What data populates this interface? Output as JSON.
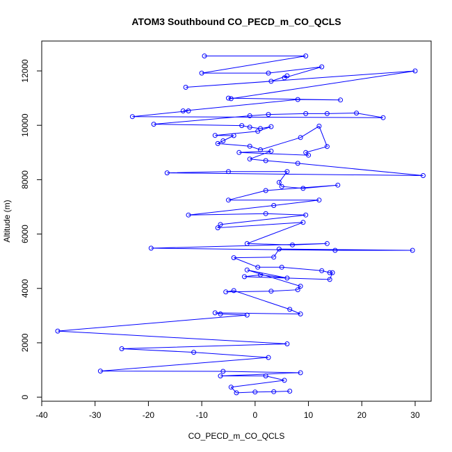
{
  "chart_data": {
    "type": "line",
    "title": "ATOM3 Southbound CO_PECD_m_CO_QCLS",
    "xlabel": "CO_PECD_m_CO_QCLS",
    "ylabel": "Altitude (m)",
    "xlim": [
      -40,
      33
    ],
    "ylim": [
      -150,
      13100
    ],
    "xticks": [
      -40,
      -30,
      -20,
      -10,
      0,
      10,
      20,
      30
    ],
    "yticks": [
      0,
      2000,
      4000,
      6000,
      8000,
      10000,
      12000
    ],
    "series_color": "#0000ff",
    "markers": "open-circle",
    "grid": false,
    "legend": "none",
    "points": [
      [
        -9.5,
        12550
      ],
      [
        9.5,
        12550
      ],
      [
        -10,
        11920
      ],
      [
        2.5,
        11920
      ],
      [
        12.5,
        12150
      ],
      [
        5.5,
        11750
      ],
      [
        6,
        11820
      ],
      [
        3,
        11620
      ],
      [
        -13,
        11400
      ],
      [
        30,
        12000
      ],
      [
        -4.5,
        10980
      ],
      [
        -5,
        11000
      ],
      [
        16,
        10930
      ],
      [
        8,
        10950
      ],
      [
        -13.5,
        10530
      ],
      [
        -12.5,
        10530
      ],
      [
        -23,
        10320
      ],
      [
        24,
        10280
      ],
      [
        19,
        10450
      ],
      [
        13.5,
        10430
      ],
      [
        9.5,
        10430
      ],
      [
        2.5,
        10400
      ],
      [
        -1,
        10350
      ],
      [
        -19,
        10040
      ],
      [
        -2.5,
        9990
      ],
      [
        -1,
        9930
      ],
      [
        1,
        9880
      ],
      [
        3,
        9950
      ],
      [
        0.5,
        9780
      ],
      [
        -7.5,
        9630
      ],
      [
        -4,
        9620
      ],
      [
        -6,
        9430
      ],
      [
        -7,
        9330
      ],
      [
        -1,
        9230
      ],
      [
        1,
        9100
      ],
      [
        8.5,
        9550
      ],
      [
        12,
        9970
      ],
      [
        13.5,
        9220
      ],
      [
        9.5,
        9000
      ],
      [
        10,
        8900
      ],
      [
        -3,
        9000
      ],
      [
        3,
        9050
      ],
      [
        -1,
        8760
      ],
      [
        2,
        8700
      ],
      [
        8,
        8600
      ],
      [
        31.5,
        8150
      ],
      [
        -16.5,
        8250
      ],
      [
        -5,
        8300
      ],
      [
        6,
        8300
      ],
      [
        4.5,
        7900
      ],
      [
        5,
        7750
      ],
      [
        9,
        7680
      ],
      [
        15.5,
        7800
      ],
      [
        2,
        7600
      ],
      [
        -5,
        7250
      ],
      [
        12,
        7250
      ],
      [
        3.5,
        7050
      ],
      [
        -12.5,
        6700
      ],
      [
        2,
        6750
      ],
      [
        9.5,
        6700
      ],
      [
        -6.5,
        6350
      ],
      [
        -7,
        6230
      ],
      [
        9,
        6430
      ],
      [
        -1.5,
        5650
      ],
      [
        7,
        5600
      ],
      [
        13.5,
        5650
      ],
      [
        -19.5,
        5480
      ],
      [
        15,
        5400
      ],
      [
        29.5,
        5400
      ],
      [
        4.5,
        5450
      ],
      [
        3.5,
        5150
      ],
      [
        -4,
        5130
      ],
      [
        0.5,
        4780
      ],
      [
        5,
        4780
      ],
      [
        12.5,
        4650
      ],
      [
        14,
        4580
      ],
      [
        14.5,
        4580
      ],
      [
        14,
        4330
      ],
      [
        -2,
        4430
      ],
      [
        1,
        4500
      ],
      [
        6,
        4380
      ],
      [
        -1.5,
        4680
      ],
      [
        8.5,
        4080
      ],
      [
        8,
        3950
      ],
      [
        3,
        3900
      ],
      [
        -5.5,
        3870
      ],
      [
        -4,
        3920
      ],
      [
        6.5,
        3230
      ],
      [
        8.5,
        3060
      ],
      [
        -7.5,
        3100
      ],
      [
        -6.5,
        3060
      ],
      [
        -1.5,
        3020
      ],
      [
        -37,
        2430
      ],
      [
        6,
        1960
      ],
      [
        -25,
        1780
      ],
      [
        -11.5,
        1650
      ],
      [
        2.5,
        1460
      ],
      [
        -29,
        960
      ],
      [
        -6,
        950
      ],
      [
        8.5,
        900
      ],
      [
        -6.5,
        780
      ],
      [
        2,
        780
      ],
      [
        5.5,
        620
      ],
      [
        -4.5,
        370
      ],
      [
        -3.5,
        160
      ],
      [
        0,
        190
      ],
      [
        3.5,
        200
      ],
      [
        6.5,
        220
      ]
    ]
  }
}
